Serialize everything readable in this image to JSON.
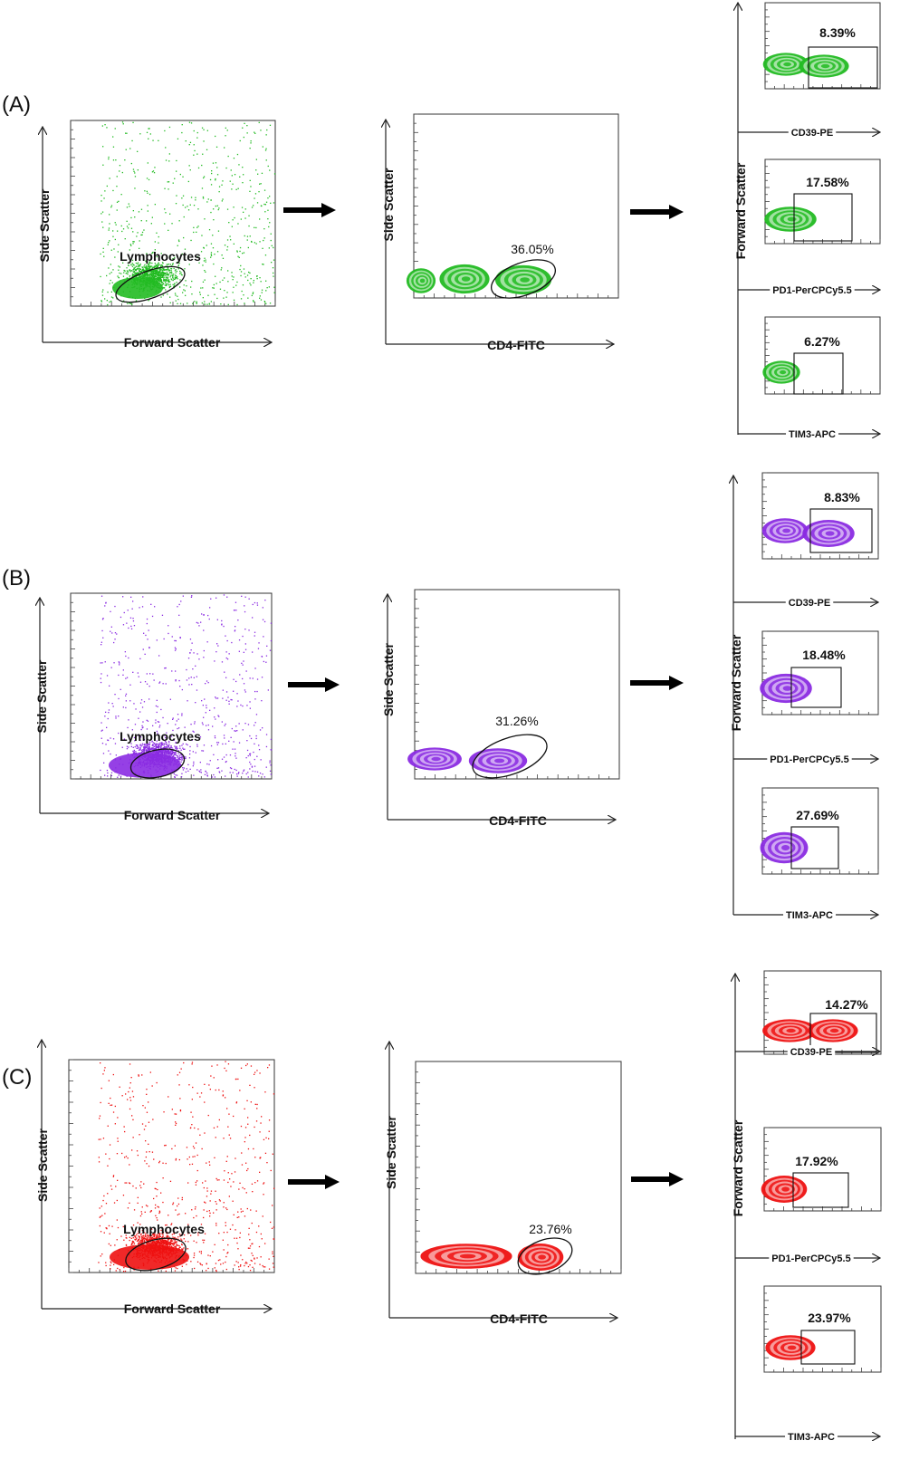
{
  "figure": {
    "panels": [
      {
        "id": "A",
        "label": "(A)",
        "color": "#22bb22",
        "scatter": {
          "xlabel": "Forward Scatter",
          "ylabel": "Side Scatter",
          "gate_label": "Lymphocytes"
        },
        "cd4": {
          "xlabel": "CD4-FITC",
          "ylabel": "Side Scatter",
          "value": "36.05%"
        },
        "subplots": [
          {
            "xlabel": "CD39-PE",
            "value": "8.39%"
          },
          {
            "xlabel": "PD1-PerCPCy5.5",
            "value": "17.58%"
          },
          {
            "xlabel": "TIM3-APC",
            "value": "6.27%"
          }
        ],
        "shared_ylabel": "Forward Scatter"
      },
      {
        "id": "B",
        "label": "(B)",
        "color": "#8a2be2",
        "scatter": {
          "xlabel": "Forward Scatter",
          "ylabel": "Side Scatter",
          "gate_label": "Lymphocytes"
        },
        "cd4": {
          "xlabel": "CD4-FITC",
          "ylabel": "Side Scatter",
          "value": "31.26%"
        },
        "subplots": [
          {
            "xlabel": "CD39-PE",
            "value": "8.83%"
          },
          {
            "xlabel": "PD1-PerCPCy5.5",
            "value": "18.48%"
          },
          {
            "xlabel": "TIM3-APC",
            "value": "27.69%"
          }
        ],
        "shared_ylabel": "Forward Scatter"
      },
      {
        "id": "C",
        "label": "(C)",
        "color": "#ee1111",
        "scatter": {
          "xlabel": "Forward Scatter",
          "ylabel": "Side Scatter",
          "gate_label": "Lymphocytes"
        },
        "cd4": {
          "xlabel": "CD4-FITC",
          "ylabel": "Side Scatter",
          "value": "23.76%"
        },
        "subplots": [
          {
            "xlabel": "CD39-PE",
            "value": "14.27%"
          },
          {
            "xlabel": "PD1-PerCPCy5.5",
            "value": "17.92%"
          },
          {
            "xlabel": "TIM3-APC",
            "value": "23.97%"
          }
        ],
        "shared_ylabel": "Forward Scatter"
      }
    ]
  },
  "chart_data": [
    {
      "type": "scatter",
      "panel": "(A)",
      "xlabel": "Forward Scatter",
      "ylabel": "Side Scatter",
      "gates": [
        {
          "label": "Lymphocytes"
        }
      ]
    },
    {
      "type": "scatter",
      "panel": "(A)",
      "xlabel": "CD4-FITC",
      "ylabel": "Side Scatter",
      "gates": [
        {
          "value": "36.05%"
        }
      ]
    },
    {
      "type": "scatter",
      "panel": "(A)",
      "xlabel": "CD39-PE",
      "ylabel": "Forward Scatter",
      "gates": [
        {
          "value": "8.39%"
        }
      ]
    },
    {
      "type": "scatter",
      "panel": "(A)",
      "xlabel": "PD1-PerCPCy5.5",
      "ylabel": "Forward Scatter",
      "gates": [
        {
          "value": "17.58%"
        }
      ]
    },
    {
      "type": "scatter",
      "panel": "(A)",
      "xlabel": "TIM3-APC",
      "ylabel": "Forward Scatter",
      "gates": [
        {
          "value": "6.27%"
        }
      ]
    },
    {
      "type": "scatter",
      "panel": "(B)",
      "xlabel": "Forward Scatter",
      "ylabel": "Side Scatter",
      "gates": [
        {
          "label": "Lymphocytes"
        }
      ]
    },
    {
      "type": "scatter",
      "panel": "(B)",
      "xlabel": "CD4-FITC",
      "ylabel": "Side Scatter",
      "gates": [
        {
          "value": "31.26%"
        }
      ]
    },
    {
      "type": "scatter",
      "panel": "(B)",
      "xlabel": "CD39-PE",
      "ylabel": "Forward Scatter",
      "gates": [
        {
          "value": "8.83%"
        }
      ]
    },
    {
      "type": "scatter",
      "panel": "(B)",
      "xlabel": "PD1-PerCPCy5.5",
      "ylabel": "Forward Scatter",
      "gates": [
        {
          "value": "18.48%"
        }
      ]
    },
    {
      "type": "scatter",
      "panel": "(B)",
      "xlabel": "TIM3-APC",
      "ylabel": "Forward Scatter",
      "gates": [
        {
          "value": "27.69%"
        }
      ]
    },
    {
      "type": "scatter",
      "panel": "(C)",
      "xlabel": "Forward Scatter",
      "ylabel": "Side Scatter",
      "gates": [
        {
          "label": "Lymphocytes"
        }
      ]
    },
    {
      "type": "scatter",
      "panel": "(C)",
      "xlabel": "CD4-FITC",
      "ylabel": "Side Scatter",
      "gates": [
        {
          "value": "23.76%"
        }
      ]
    },
    {
      "type": "scatter",
      "panel": "(C)",
      "xlabel": "CD39-PE",
      "ylabel": "Forward Scatter",
      "gates": [
        {
          "value": "14.27%"
        }
      ]
    },
    {
      "type": "scatter",
      "panel": "(C)",
      "xlabel": "PD1-PerCPCy5.5",
      "ylabel": "Forward Scatter",
      "gates": [
        {
          "value": "17.92%"
        }
      ]
    },
    {
      "type": "scatter",
      "panel": "(C)",
      "xlabel": "TIM3-APC",
      "ylabel": "Forward Scatter",
      "gates": [
        {
          "value": "23.97%"
        }
      ]
    }
  ]
}
